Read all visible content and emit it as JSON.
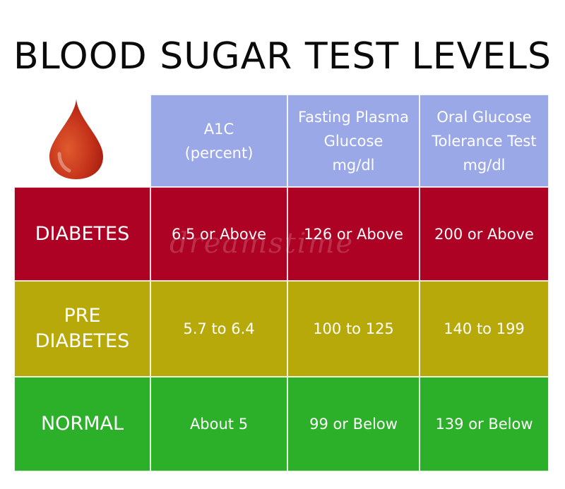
{
  "title": "BLOOD SUGAR TEST LEVELS",
  "headers": {
    "a1c": [
      "A1C",
      "(percent)"
    ],
    "fasting": [
      "Fasting Plasma",
      "Glucose",
      "mg/dl"
    ],
    "oral": [
      "Oral Glucose",
      "Tolerance Test",
      "mg/dl"
    ]
  },
  "rows": [
    {
      "label": [
        "DIABETES"
      ],
      "a1c": "6.5 or Above",
      "fasting": "126 or Above",
      "oral": "200 or Above"
    },
    {
      "label": [
        "PRE",
        "DIABETES"
      ],
      "a1c": "5.7 to 6.4",
      "fasting": "100 to 125",
      "oral": "140 to 199"
    },
    {
      "label": [
        "NORMAL"
      ],
      "a1c": "About 5",
      "fasting": "99 or Below",
      "oral": "139 or Below"
    }
  ],
  "colors": {
    "header": "#9aa8e8",
    "diabetes": "#ad0224",
    "prediabetes": "#b8a90a",
    "normal": "#2cb02a",
    "drop": "#c5331a"
  },
  "watermark": "dreamstime"
}
